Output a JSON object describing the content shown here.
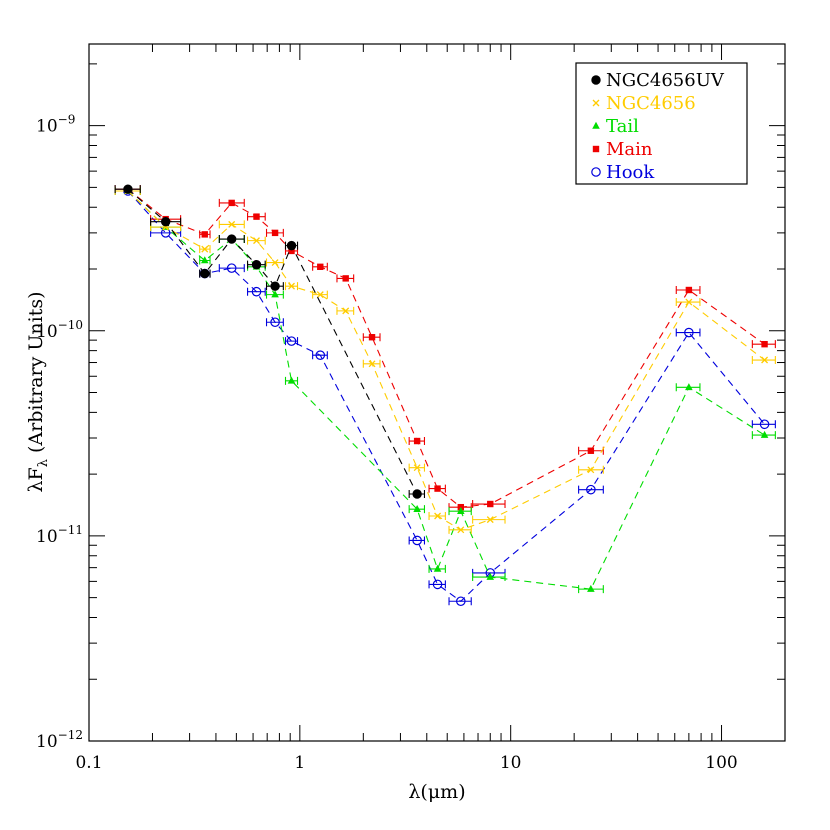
{
  "chart_data": {
    "type": "scatter",
    "xlabel": "λ(μm)",
    "ylabel_main": "λF",
    "ylabel_sub": "λ",
    "ylabel_rest": " (Arbitrary Units)",
    "xscale": "log",
    "yscale": "log",
    "xlim": [
      0.1,
      200
    ],
    "ylim": [
      1e-12,
      2.5e-09
    ],
    "grid": false,
    "legend_position": "top-right",
    "x_ticks": [
      {
        "value": 0.1,
        "label": "0.1"
      },
      {
        "value": 1,
        "label": "1"
      },
      {
        "value": 10,
        "label": "10"
      },
      {
        "value": 100,
        "label": "100"
      }
    ],
    "y_ticks": [
      {
        "value": 1e-12,
        "base": "10",
        "exp": "−12"
      },
      {
        "value": 1e-11,
        "base": "10",
        "exp": "−11"
      },
      {
        "value": 1e-10,
        "base": "10",
        "exp": "−10"
      },
      {
        "value": 1e-09,
        "base": "10",
        "exp": "−9"
      }
    ],
    "series": [
      {
        "name": "NGC4656UV",
        "color": "#000000",
        "marker": "circle-filled",
        "points": [
          {
            "x": 0.153,
            "y": 4.9e-10,
            "xerr": [
              0.133,
              0.175
            ]
          },
          {
            "x": 0.231,
            "y": 3.4e-10,
            "xerr": [
              0.196,
              0.272
            ]
          },
          {
            "x": 0.354,
            "y": 1.9e-10,
            "xerr": [
              0.335,
              0.375
            ]
          },
          {
            "x": 0.475,
            "y": 2.8e-10,
            "xerr": [
              0.415,
              0.545
            ]
          },
          {
            "x": 0.623,
            "y": 2.1e-10,
            "xerr": [
              0.565,
              0.685
            ]
          },
          {
            "x": 0.763,
            "y": 1.65e-10,
            "xerr": [
              0.695,
              0.835
            ]
          },
          {
            "x": 0.913,
            "y": 2.6e-10,
            "xerr": [
              0.855,
              0.975
            ]
          },
          {
            "x": 3.6,
            "y": 1.6e-11,
            "xerr": [
              3.3,
              3.9
            ]
          }
        ]
      },
      {
        "name": "NGC4656",
        "color": "#ffcc00",
        "marker": "cross",
        "points": [
          {
            "x": 0.153,
            "y": 4.8e-10,
            "xerr": [
              0.133,
              0.175
            ]
          },
          {
            "x": 0.231,
            "y": 3.2e-10,
            "xerr": [
              0.196,
              0.272
            ]
          },
          {
            "x": 0.354,
            "y": 2.5e-10,
            "xerr": [
              0.335,
              0.375
            ]
          },
          {
            "x": 0.475,
            "y": 3.3e-10,
            "xerr": [
              0.415,
              0.545
            ]
          },
          {
            "x": 0.623,
            "y": 2.75e-10,
            "xerr": [
              0.565,
              0.685
            ]
          },
          {
            "x": 0.763,
            "y": 2.15e-10,
            "xerr": [
              0.695,
              0.835
            ]
          },
          {
            "x": 0.913,
            "y": 1.65e-10,
            "xerr": [
              0.855,
              0.975
            ]
          },
          {
            "x": 1.25,
            "y": 1.5e-10,
            "xerr": [
              1.15,
              1.35
            ]
          },
          {
            "x": 1.65,
            "y": 1.25e-10,
            "xerr": [
              1.5,
              1.8
            ]
          },
          {
            "x": 2.2,
            "y": 6.9e-11,
            "xerr": [
              2.0,
              2.4
            ]
          },
          {
            "x": 3.6,
            "y": 2.15e-11,
            "xerr": [
              3.3,
              3.9
            ]
          },
          {
            "x": 4.5,
            "y": 1.25e-11,
            "xerr": [
              4.1,
              4.9
            ]
          },
          {
            "x": 5.8,
            "y": 1.07e-11,
            "xerr": [
              5.1,
              6.5
            ]
          },
          {
            "x": 8.0,
            "y": 1.2e-11,
            "xerr": [
              6.6,
              9.4
            ]
          },
          {
            "x": 24.0,
            "y": 2.1e-11,
            "xerr": [
              21.0,
              27.5
            ]
          },
          {
            "x": 70.0,
            "y": 1.38e-10,
            "xerr": [
              61.0,
              79.0
            ]
          },
          {
            "x": 160.0,
            "y": 7.2e-11,
            "xerr": [
              140.0,
              180.0
            ]
          }
        ]
      },
      {
        "name": "Tail",
        "color": "#00dd00",
        "marker": "triangle-filled",
        "points": [
          {
            "x": 0.153,
            "y": 4.8e-10,
            "xerr": [
              0.133,
              0.175
            ]
          },
          {
            "x": 0.231,
            "y": 3.2e-10,
            "xerr": [
              0.196,
              0.272
            ]
          },
          {
            "x": 0.354,
            "y": 2.2e-10,
            "xerr": [
              0.335,
              0.375
            ]
          },
          {
            "x": 0.475,
            "y": 2.8e-10,
            "xerr": [
              0.415,
              0.545
            ]
          },
          {
            "x": 0.623,
            "y": 2.05e-10,
            "xerr": [
              0.565,
              0.685
            ]
          },
          {
            "x": 0.763,
            "y": 1.5e-10,
            "xerr": [
              0.695,
              0.835
            ]
          },
          {
            "x": 0.913,
            "y": 5.7e-11,
            "xerr": [
              0.855,
              0.975
            ]
          },
          {
            "x": 3.6,
            "y": 1.35e-11,
            "xerr": [
              3.3,
              3.9
            ]
          },
          {
            "x": 4.5,
            "y": 6.9e-12,
            "xerr": [
              4.1,
              4.9
            ]
          },
          {
            "x": 5.8,
            "y": 1.32e-11,
            "xerr": [
              5.1,
              6.5
            ]
          },
          {
            "x": 8.0,
            "y": 6.3e-12,
            "xerr": [
              6.6,
              9.4
            ]
          },
          {
            "x": 24.0,
            "y": 5.5e-12,
            "xerr": [
              21.0,
              27.5
            ]
          },
          {
            "x": 70.0,
            "y": 5.3e-11,
            "xerr": [
              61.0,
              79.0
            ]
          },
          {
            "x": 160.0,
            "y": 3.1e-11,
            "xerr": [
              140.0,
              180.0
            ]
          }
        ]
      },
      {
        "name": "Main",
        "color": "#ee0000",
        "marker": "square-filled",
        "points": [
          {
            "x": 0.153,
            "y": 4.9e-10,
            "xerr": [
              0.133,
              0.175
            ]
          },
          {
            "x": 0.231,
            "y": 3.5e-10,
            "xerr": [
              0.196,
              0.272
            ]
          },
          {
            "x": 0.354,
            "y": 2.95e-10,
            "xerr": [
              0.335,
              0.375
            ]
          },
          {
            "x": 0.475,
            "y": 4.2e-10,
            "xerr": [
              0.415,
              0.545
            ]
          },
          {
            "x": 0.623,
            "y": 3.6e-10,
            "xerr": [
              0.565,
              0.685
            ]
          },
          {
            "x": 0.763,
            "y": 3e-10,
            "xerr": [
              0.695,
              0.835
            ]
          },
          {
            "x": 0.913,
            "y": 2.45e-10,
            "xerr": [
              0.855,
              0.975
            ]
          },
          {
            "x": 1.25,
            "y": 2.05e-10,
            "xerr": [
              1.15,
              1.35
            ]
          },
          {
            "x": 1.65,
            "y": 1.8e-10,
            "xerr": [
              1.5,
              1.8
            ]
          },
          {
            "x": 2.2,
            "y": 9.3e-11,
            "xerr": [
              2.0,
              2.4
            ]
          },
          {
            "x": 3.6,
            "y": 2.9e-11,
            "xerr": [
              3.3,
              3.9
            ]
          },
          {
            "x": 4.5,
            "y": 1.7e-11,
            "xerr": [
              4.1,
              4.9
            ]
          },
          {
            "x": 5.8,
            "y": 1.38e-11,
            "xerr": [
              5.1,
              6.5
            ]
          },
          {
            "x": 8.0,
            "y": 1.43e-11,
            "xerr": [
              6.6,
              9.4
            ]
          },
          {
            "x": 24.0,
            "y": 2.6e-11,
            "xerr": [
              21.0,
              27.5
            ]
          },
          {
            "x": 70.0,
            "y": 1.58e-10,
            "xerr": [
              61.0,
              79.0
            ]
          },
          {
            "x": 160.0,
            "y": 8.6e-11,
            "xerr": [
              140.0,
              180.0
            ]
          }
        ]
      },
      {
        "name": "Hook",
        "color": "#0000dd",
        "marker": "circle-open",
        "points": [
          {
            "x": 0.153,
            "y": 4.8e-10,
            "xerr": [
              0.133,
              0.175
            ]
          },
          {
            "x": 0.231,
            "y": 3e-10,
            "xerr": [
              0.196,
              0.272
            ]
          },
          {
            "x": 0.354,
            "y": 1.9e-10,
            "xerr": [
              0.335,
              0.375
            ]
          },
          {
            "x": 0.475,
            "y": 2.02e-10,
            "xerr": [
              0.415,
              0.545
            ]
          },
          {
            "x": 0.623,
            "y": 1.55e-10,
            "xerr": [
              0.565,
              0.685
            ]
          },
          {
            "x": 0.763,
            "y": 1.1e-10,
            "xerr": [
              0.695,
              0.835
            ]
          },
          {
            "x": 0.913,
            "y": 8.9e-11,
            "xerr": [
              0.855,
              0.975
            ]
          },
          {
            "x": 1.25,
            "y": 7.6e-11,
            "xerr": [
              1.15,
              1.35
            ]
          },
          {
            "x": 3.6,
            "y": 9.5e-12,
            "xerr": [
              3.3,
              3.9
            ]
          },
          {
            "x": 4.5,
            "y": 5.8e-12,
            "xerr": [
              4.1,
              4.9
            ]
          },
          {
            "x": 5.8,
            "y": 4.8e-12,
            "xerr": [
              5.1,
              6.5
            ]
          },
          {
            "x": 8.0,
            "y": 6.6e-12,
            "xerr": [
              6.6,
              9.4
            ]
          },
          {
            "x": 24.0,
            "y": 1.68e-11,
            "xerr": [
              21.0,
              27.5
            ]
          },
          {
            "x": 70.0,
            "y": 9.8e-11,
            "xerr": [
              61.0,
              79.0
            ]
          },
          {
            "x": 160.0,
            "y": 3.5e-11,
            "xerr": [
              140.0,
              180.0
            ]
          }
        ]
      }
    ]
  }
}
